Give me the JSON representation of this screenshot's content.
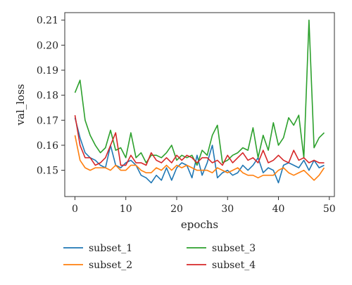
{
  "chart_data": {
    "type": "line",
    "xlabel": "epochs",
    "ylabel": "val_loss",
    "xlim": [
      -2,
      51
    ],
    "ylim": [
      0.1395,
      0.213
    ],
    "xticks": [
      0,
      10,
      20,
      30,
      40,
      50
    ],
    "yticks": [
      0.15,
      0.16,
      0.17,
      0.18,
      0.19,
      0.2,
      0.21
    ],
    "ytick_labels": [
      "0.15",
      "0.16",
      "0.17",
      "0.18",
      "0.19",
      "0.20",
      "0.21"
    ],
    "grid": false,
    "legend_position": "bottom",
    "x": [
      0,
      1,
      2,
      3,
      4,
      5,
      6,
      7,
      8,
      9,
      10,
      11,
      12,
      13,
      14,
      15,
      16,
      17,
      18,
      19,
      20,
      21,
      22,
      23,
      24,
      25,
      26,
      27,
      28,
      29,
      30,
      31,
      32,
      33,
      34,
      35,
      36,
      37,
      38,
      39,
      40,
      41,
      42,
      43,
      44,
      45,
      46,
      47,
      48,
      49
    ],
    "series": [
      {
        "name": "subset_1",
        "color": "#1f77b4",
        "values": [
          0.171,
          0.163,
          0.157,
          0.155,
          0.154,
          0.152,
          0.151,
          0.16,
          0.152,
          0.151,
          0.153,
          0.154,
          0.152,
          0.148,
          0.147,
          0.145,
          0.148,
          0.146,
          0.151,
          0.146,
          0.151,
          0.153,
          0.152,
          0.147,
          0.156,
          0.148,
          0.153,
          0.16,
          0.147,
          0.149,
          0.15,
          0.148,
          0.149,
          0.152,
          0.15,
          0.152,
          0.155,
          0.149,
          0.151,
          0.15,
          0.145,
          0.152,
          0.153,
          0.152,
          0.151,
          0.154,
          0.15,
          0.154,
          0.151,
          0.152
        ]
      },
      {
        "name": "subset_2",
        "color": "#ff7f0e",
        "values": [
          0.164,
          0.154,
          0.151,
          0.15,
          0.151,
          0.151,
          0.151,
          0.15,
          0.152,
          0.15,
          0.15,
          0.152,
          0.152,
          0.15,
          0.149,
          0.149,
          0.151,
          0.15,
          0.152,
          0.15,
          0.152,
          0.151,
          0.152,
          0.151,
          0.15,
          0.15,
          0.15,
          0.149,
          0.151,
          0.15,
          0.149,
          0.15,
          0.151,
          0.149,
          0.148,
          0.148,
          0.147,
          0.148,
          0.148,
          0.148,
          0.15,
          0.151,
          0.149,
          0.148,
          0.149,
          0.15,
          0.148,
          0.146,
          0.148,
          0.151
        ]
      },
      {
        "name": "subset_3",
        "color": "#2ca02c",
        "values": [
          0.181,
          0.186,
          0.17,
          0.164,
          0.16,
          0.157,
          0.159,
          0.166,
          0.158,
          0.159,
          0.155,
          0.165,
          0.155,
          0.157,
          0.153,
          0.156,
          0.156,
          0.155,
          0.157,
          0.16,
          0.154,
          0.156,
          0.155,
          0.156,
          0.152,
          0.158,
          0.156,
          0.164,
          0.168,
          0.153,
          0.154,
          0.156,
          0.157,
          0.159,
          0.158,
          0.167,
          0.155,
          0.164,
          0.158,
          0.169,
          0.16,
          0.163,
          0.171,
          0.168,
          0.172,
          0.155,
          0.21,
          0.159,
          0.163,
          0.165
        ]
      },
      {
        "name": "subset_4",
        "color": "#d62728",
        "values": [
          0.172,
          0.16,
          0.155,
          0.155,
          0.152,
          0.153,
          0.155,
          0.16,
          0.165,
          0.152,
          0.152,
          0.156,
          0.153,
          0.153,
          0.152,
          0.157,
          0.154,
          0.153,
          0.155,
          0.153,
          0.156,
          0.154,
          0.156,
          0.155,
          0.153,
          0.155,
          0.155,
          0.153,
          0.154,
          0.152,
          0.156,
          0.153,
          0.155,
          0.157,
          0.154,
          0.155,
          0.153,
          0.158,
          0.153,
          0.154,
          0.156,
          0.154,
          0.153,
          0.158,
          0.154,
          0.155,
          0.153,
          0.154,
          0.153,
          0.153
        ]
      }
    ]
  }
}
